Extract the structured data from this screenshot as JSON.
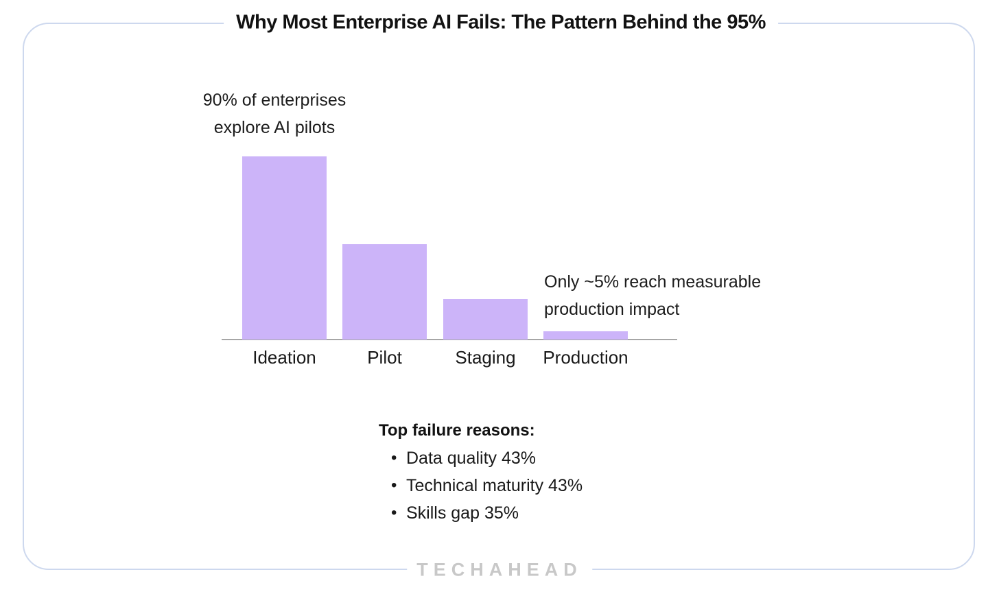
{
  "title": "Why Most Enterprise AI Fails: The Pattern Behind the 95%",
  "annotations": {
    "left": {
      "line1": "90% of enterprises",
      "line2": "explore AI pilots"
    },
    "right": {
      "line1": "Only ~5% reach measurable",
      "line2": "production impact"
    }
  },
  "failure_reasons": {
    "heading": "Top failure reasons:",
    "items": [
      "Data quality 43%",
      "Technical maturity 43%",
      "Skills gap 35%"
    ]
  },
  "logo": {
    "text": "TECHAHEAD"
  },
  "colors": {
    "bar": "#ccb4f9",
    "card_border": "#cdd8ee",
    "axis": "#a6a6a6",
    "text": "#191919",
    "logo": "#c8c8c8"
  },
  "chart_data": {
    "type": "bar",
    "title": "Why Most Enterprise AI Fails: The Pattern Behind the 95%",
    "categories": [
      "Ideation",
      "Pilot",
      "Staging",
      "Production"
    ],
    "values": [
      90,
      47,
      20,
      4
    ],
    "unit": "%",
    "xlabel": "",
    "ylabel": "",
    "ylim": [
      0,
      100
    ],
    "grid": false,
    "legend": false,
    "bar_color": "#ccb4f9",
    "annotations": [
      "90% of enterprises explore AI pilots",
      "Only ~5% reach measurable production impact"
    ],
    "notes": {
      "heading": "Top failure reasons:",
      "items": [
        "Data quality 43%",
        "Technical maturity 43%",
        "Skills gap 35%"
      ]
    }
  }
}
